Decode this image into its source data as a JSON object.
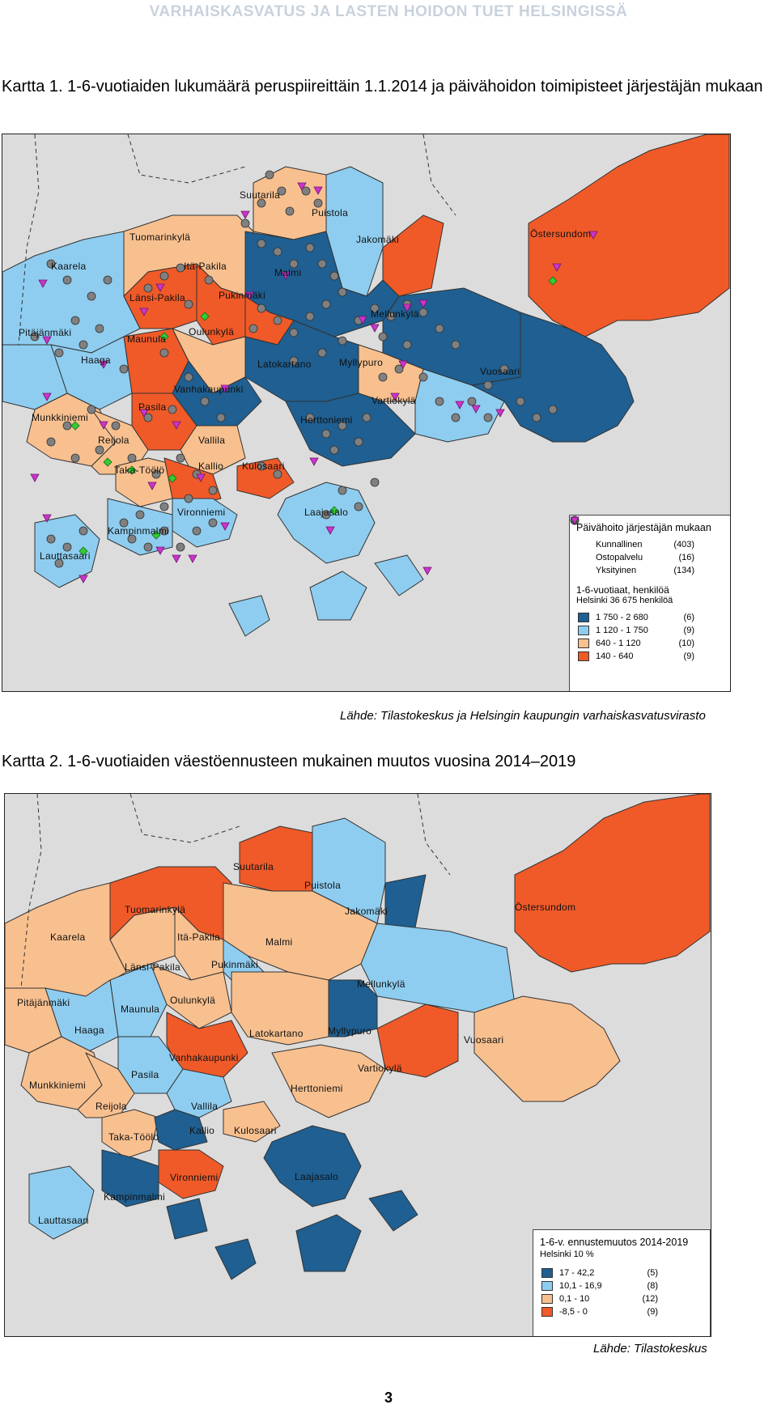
{
  "header": "VARHAISKASVATUS JA LASTEN HOIDON TUET HELSINGISSÄ",
  "map1": {
    "title": "Kartta 1. 1-6-vuotiaiden lukumäärä peruspiireittäin 1.1.2014 ja päivähoidon toimipisteet järjestäjän mukaan",
    "places": [
      "Suutarila",
      "Puistola",
      "Jakomäki",
      "Östersundom",
      "Tuomarinkylä",
      "Kaarela",
      "Itä-Pakila",
      "Malmi",
      "Länsi-Pakila",
      "Pukinmäki",
      "Mellunkylä",
      "Pitäjänmäki",
      "Maunula",
      "Oulunkylä",
      "Haaga",
      "Latokartano",
      "Myllypuro",
      "Vuosaari",
      "Vanhakaupunki",
      "Vartiokylä",
      "Pasila",
      "Munkkiniemi",
      "Herttoniemi",
      "Reijola",
      "Vallila",
      "Taka-Töölö",
      "Kallio",
      "Kulosaari",
      "Vironniemi",
      "Laajasalo",
      "Kampinmalmi",
      "Lauttasaari"
    ],
    "legend": {
      "title": "Päivähoito järjestäjän mukaan",
      "providers": [
        {
          "label": "Kunnallinen",
          "count": "(403)",
          "symbol": "grey-circle-icon",
          "color": "#808080"
        },
        {
          "label": "Ostopalvelu",
          "count": "(16)",
          "symbol": "green-diamond-icon",
          "color": "#33cc33"
        },
        {
          "label": "Yksityinen",
          "count": "(134)",
          "symbol": "magenta-triangle-icon",
          "color": "#cc33cc"
        }
      ],
      "subtitle_1": "1-6-vuotiaat, henkilöä",
      "subtitle_2": "Helsinki 36 675 henkilöä",
      "classes": [
        {
          "label": "1 750 - 2 680",
          "count": "(6)",
          "color": "#1f5f91"
        },
        {
          "label": "1 120 - 1 750",
          "count": "(9)",
          "color": "#8ecdf0"
        },
        {
          "label": "640 - 1 120",
          "count": "(10)",
          "color": "#f8c08f"
        },
        {
          "label": "140 -   640",
          "count": "(9)",
          "color": "#f05a28"
        }
      ]
    },
    "source": "Lähde: Tilastokeskus ja Helsingin kaupungin varhaiskasvatusvirasto"
  },
  "map2": {
    "title": "Kartta 2. 1-6-vuotiaiden väestöennusteen mukainen muutos vuosina 2014–2019",
    "places": [
      "Suutarila",
      "Puistola",
      "Jakomäki",
      "Östersundom",
      "Tuomarinkylä",
      "Kaarela",
      "Itä-Pakila",
      "Malmi",
      "Länsi-Pakila",
      "Pukinmäki",
      "Mellunkylä",
      "Pitäjänmäki",
      "Maunula",
      "Oulunkylä",
      "Haaga",
      "Latokartano",
      "Myllypuro",
      "Vuosaari",
      "Vanhakaupunki",
      "Vartiokylä",
      "Pasila",
      "Munkkiniemi",
      "Herttoniemi",
      "Reijola",
      "Vallila",
      "Taka-Töölö",
      "Kallio",
      "Kulosaari",
      "Vironniemi",
      "Laajasalo",
      "Kampinmalmi",
      "Lauttasaari"
    ],
    "legend": {
      "title": "1-6-v. ennustemuutos 2014-2019",
      "subtitle": "Helsinki 10 %",
      "classes": [
        {
          "label": "17   - 42,2",
          "count": "(5)",
          "color": "#1f5f91"
        },
        {
          "label": "10,1 - 16,9",
          "count": "(8)",
          "color": "#8ecdf0"
        },
        {
          "label": "0,1 - 10",
          "count": "(12)",
          "color": "#f8c08f"
        },
        {
          "label": "-8,5 -   0",
          "count": "(9)",
          "color": "#f05a28"
        }
      ]
    },
    "source": "Lähde: Tilastokeskus"
  },
  "page_number": "3"
}
